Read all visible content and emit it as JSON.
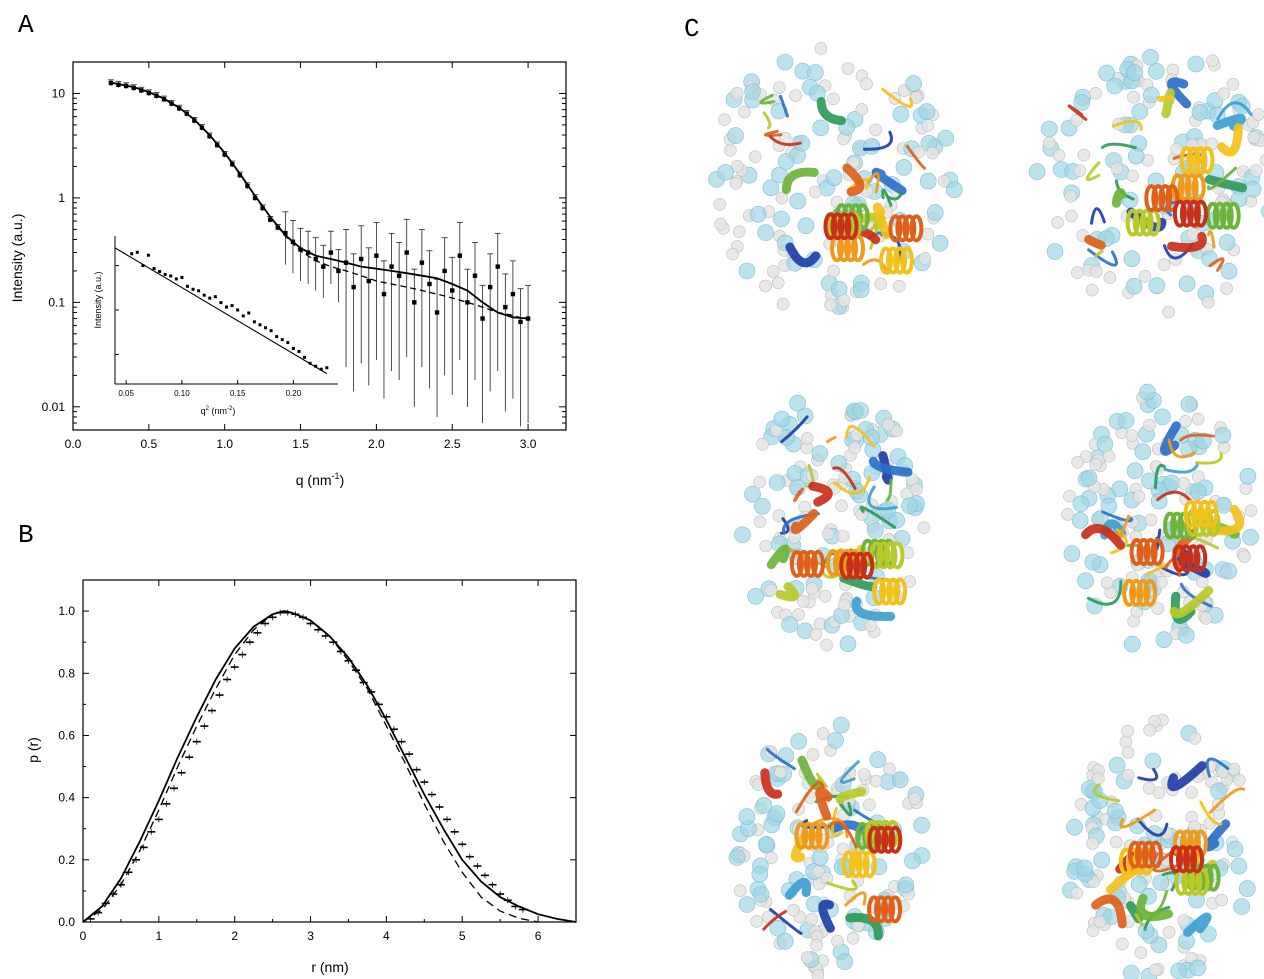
{
  "panel_labels": {
    "a": "A",
    "b": "B",
    "c": "C"
  },
  "chart_data": [
    {
      "panel": "A",
      "type": "scatter",
      "xlabel_prefix": "q (nm",
      "xlabel_exp": "-1",
      "xlabel_suffix": ")",
      "ylabel": "Intensity (a.u.)",
      "xlim": [
        0.0,
        3.25
      ],
      "ylim": [
        0.006,
        20
      ],
      "yscale": "log",
      "x_ticks": [
        "0.0",
        "0.5",
        "1.0",
        "1.5",
        "2.0",
        "2.5",
        "3.0"
      ],
      "x_tick_values": [
        0.0,
        0.5,
        1.0,
        1.5,
        2.0,
        2.5,
        3.0
      ],
      "y_ticks": [
        "10",
        "1",
        "0.1",
        "0.01"
      ],
      "y_tick_values": [
        10,
        1,
        0.1,
        0.01
      ],
      "fit_solid": [
        [
          0.24,
          12.8
        ],
        [
          0.3,
          12.3
        ],
        [
          0.4,
          11.5
        ],
        [
          0.5,
          10.3
        ],
        [
          0.6,
          8.9
        ],
        [
          0.7,
          7.3
        ],
        [
          0.8,
          5.6
        ],
        [
          0.9,
          4.0
        ],
        [
          1.0,
          2.7
        ],
        [
          1.1,
          1.7
        ],
        [
          1.2,
          1.05
        ],
        [
          1.3,
          0.66
        ],
        [
          1.4,
          0.44
        ],
        [
          1.5,
          0.33
        ],
        [
          1.6,
          0.28
        ],
        [
          1.7,
          0.26
        ],
        [
          1.8,
          0.24
        ],
        [
          1.9,
          0.22
        ],
        [
          2.0,
          0.21
        ],
        [
          2.1,
          0.2
        ],
        [
          2.2,
          0.19
        ],
        [
          2.3,
          0.18
        ],
        [
          2.4,
          0.17
        ],
        [
          2.5,
          0.15
        ],
        [
          2.6,
          0.13
        ],
        [
          2.7,
          0.1
        ],
        [
          2.8,
          0.08
        ],
        [
          2.9,
          0.072
        ],
        [
          3.0,
          0.07
        ]
      ],
      "fit_dashed": [
        [
          0.24,
          12.8
        ],
        [
          0.3,
          12.3
        ],
        [
          0.4,
          11.5
        ],
        [
          0.5,
          10.3
        ],
        [
          0.6,
          8.9
        ],
        [
          0.7,
          7.3
        ],
        [
          0.8,
          5.6
        ],
        [
          0.9,
          4.0
        ],
        [
          1.0,
          2.7
        ],
        [
          1.1,
          1.7
        ],
        [
          1.2,
          1.05
        ],
        [
          1.3,
          0.66
        ],
        [
          1.4,
          0.43
        ],
        [
          1.5,
          0.31
        ],
        [
          1.6,
          0.25
        ],
        [
          1.7,
          0.22
        ],
        [
          1.8,
          0.2
        ],
        [
          1.9,
          0.18
        ],
        [
          2.0,
          0.16
        ],
        [
          2.1,
          0.15
        ],
        [
          2.2,
          0.14
        ],
        [
          2.3,
          0.13
        ],
        [
          2.4,
          0.12
        ],
        [
          2.5,
          0.11
        ],
        [
          2.6,
          0.1
        ],
        [
          2.7,
          0.09
        ],
        [
          2.8,
          0.08
        ],
        [
          2.9,
          0.075
        ],
        [
          3.0,
          0.068
        ]
      ],
      "data_points": [
        [
          0.25,
          12.6
        ],
        [
          0.3,
          12.1
        ],
        [
          0.35,
          11.8
        ],
        [
          0.4,
          11.3
        ],
        [
          0.45,
          10.7
        ],
        [
          0.5,
          10.1
        ],
        [
          0.55,
          9.5
        ],
        [
          0.6,
          8.8
        ],
        [
          0.65,
          8.0
        ],
        [
          0.7,
          7.2
        ],
        [
          0.75,
          6.4
        ],
        [
          0.8,
          5.5
        ],
        [
          0.85,
          4.7
        ],
        [
          0.9,
          3.9
        ],
        [
          0.95,
          3.2
        ],
        [
          1.0,
          2.6
        ],
        [
          1.05,
          2.1
        ],
        [
          1.1,
          1.65
        ],
        [
          1.15,
          1.3
        ],
        [
          1.2,
          1.0
        ],
        [
          1.25,
          0.8
        ],
        [
          1.3,
          0.62
        ],
        [
          1.35,
          0.52
        ],
        [
          1.4,
          0.46
        ],
        [
          1.45,
          0.38
        ],
        [
          1.5,
          0.32
        ],
        [
          1.55,
          0.3
        ],
        [
          1.6,
          0.26
        ],
        [
          1.65,
          0.22
        ],
        [
          1.7,
          0.3
        ],
        [
          1.75,
          0.2
        ],
        [
          1.8,
          0.24
        ],
        [
          1.85,
          0.14
        ],
        [
          1.9,
          0.26
        ],
        [
          1.95,
          0.16
        ],
        [
          2.0,
          0.28
        ],
        [
          2.05,
          0.12
        ],
        [
          2.1,
          0.22
        ],
        [
          2.15,
          0.18
        ],
        [
          2.2,
          0.3
        ],
        [
          2.25,
          0.1
        ],
        [
          2.3,
          0.24
        ],
        [
          2.35,
          0.15
        ],
        [
          2.4,
          0.08
        ],
        [
          2.45,
          0.2
        ],
        [
          2.5,
          0.13
        ],
        [
          2.55,
          0.28
        ],
        [
          2.6,
          0.1
        ],
        [
          2.65,
          0.18
        ],
        [
          2.7,
          0.07
        ],
        [
          2.75,
          0.14
        ],
        [
          2.8,
          0.22
        ],
        [
          2.85,
          0.09
        ],
        [
          2.9,
          0.12
        ],
        [
          2.95,
          0.065
        ],
        [
          3.0,
          0.07
        ]
      ],
      "inset": {
        "xlabel_prefix": "q",
        "xlabel_exp_sup": "2",
        "xlabel_middle": " (nm",
        "xlabel_exp": "-2",
        "xlabel_suffix": ")",
        "ylabel": "Intensity (a.u.)",
        "xlim": [
          0.04,
          0.24
        ],
        "x_ticks": [
          "0.05",
          "0.10",
          "0.15",
          "0.20"
        ],
        "x_tick_values": [
          0.05,
          0.1,
          0.15,
          0.2
        ],
        "fit": [
          [
            0.04,
            0.92
          ],
          [
            0.23,
            0.07
          ]
        ],
        "points": [
          [
            0.055,
            0.88
          ],
          [
            0.06,
            0.89
          ],
          [
            0.065,
            0.8
          ],
          [
            0.07,
            0.87
          ],
          [
            0.075,
            0.78
          ],
          [
            0.08,
            0.76
          ],
          [
            0.085,
            0.74
          ],
          [
            0.09,
            0.73
          ],
          [
            0.095,
            0.71
          ],
          [
            0.1,
            0.72
          ],
          [
            0.105,
            0.66
          ],
          [
            0.11,
            0.64
          ],
          [
            0.115,
            0.63
          ],
          [
            0.12,
            0.6
          ],
          [
            0.125,
            0.58
          ],
          [
            0.13,
            0.59
          ],
          [
            0.135,
            0.55
          ],
          [
            0.14,
            0.52
          ],
          [
            0.145,
            0.53
          ],
          [
            0.15,
            0.5
          ],
          [
            0.155,
            0.46
          ],
          [
            0.16,
            0.48
          ],
          [
            0.165,
            0.42
          ],
          [
            0.17,
            0.4
          ],
          [
            0.175,
            0.38
          ],
          [
            0.18,
            0.36
          ],
          [
            0.185,
            0.32
          ],
          [
            0.19,
            0.3
          ],
          [
            0.195,
            0.28
          ],
          [
            0.2,
            0.24
          ],
          [
            0.205,
            0.22
          ],
          [
            0.21,
            0.18
          ],
          [
            0.215,
            0.14
          ],
          [
            0.22,
            0.12
          ],
          [
            0.225,
            0.1
          ],
          [
            0.23,
            0.11
          ]
        ]
      }
    },
    {
      "panel": "B",
      "type": "line",
      "xlabel": "r (nm)",
      "ylabel": "p (r)",
      "xlim": [
        0,
        6.5
      ],
      "ylim": [
        0,
        1.1
      ],
      "x_ticks": [
        "0",
        "1",
        "2",
        "3",
        "4",
        "5",
        "6"
      ],
      "x_tick_values": [
        0,
        1,
        2,
        3,
        4,
        5,
        6
      ],
      "y_ticks": [
        "0.0",
        "0.2",
        "0.4",
        "0.6",
        "0.8",
        "1.0"
      ],
      "y_tick_values": [
        0.0,
        0.2,
        0.4,
        0.6,
        0.8,
        1.0
      ],
      "solid": [
        [
          0,
          0
        ],
        [
          0.25,
          0.05
        ],
        [
          0.5,
          0.14
        ],
        [
          0.75,
          0.26
        ],
        [
          1.0,
          0.39
        ],
        [
          1.25,
          0.53
        ],
        [
          1.5,
          0.66
        ],
        [
          1.75,
          0.78
        ],
        [
          2.0,
          0.88
        ],
        [
          2.25,
          0.95
        ],
        [
          2.5,
          0.99
        ],
        [
          2.65,
          1.0
        ],
        [
          2.75,
          0.995
        ],
        [
          3.0,
          0.97
        ],
        [
          3.25,
          0.92
        ],
        [
          3.5,
          0.85
        ],
        [
          3.75,
          0.76
        ],
        [
          4.0,
          0.65
        ],
        [
          4.25,
          0.53
        ],
        [
          4.5,
          0.41
        ],
        [
          4.75,
          0.3
        ],
        [
          5.0,
          0.2
        ],
        [
          5.25,
          0.13
        ],
        [
          5.5,
          0.08
        ],
        [
          5.75,
          0.05
        ],
        [
          6.0,
          0.025
        ],
        [
          6.25,
          0.01
        ],
        [
          6.5,
          0.0
        ]
      ],
      "dashed": [
        [
          0,
          0
        ],
        [
          0.25,
          0.04
        ],
        [
          0.5,
          0.12
        ],
        [
          0.75,
          0.23
        ],
        [
          1.0,
          0.36
        ],
        [
          1.25,
          0.5
        ],
        [
          1.5,
          0.63
        ],
        [
          1.75,
          0.75
        ],
        [
          2.0,
          0.86
        ],
        [
          2.25,
          0.94
        ],
        [
          2.5,
          0.99
        ],
        [
          2.65,
          1.0
        ],
        [
          2.75,
          0.995
        ],
        [
          3.0,
          0.97
        ],
        [
          3.25,
          0.92
        ],
        [
          3.5,
          0.84
        ],
        [
          3.75,
          0.75
        ],
        [
          4.0,
          0.63
        ],
        [
          4.25,
          0.51
        ],
        [
          4.5,
          0.38
        ],
        [
          4.75,
          0.26
        ],
        [
          5.0,
          0.16
        ],
        [
          5.25,
          0.08
        ],
        [
          5.5,
          0.035
        ],
        [
          5.75,
          0.012
        ],
        [
          6.0,
          0.0
        ]
      ],
      "points": [
        [
          0.1,
          0.01
        ],
        [
          0.2,
          0.03
        ],
        [
          0.3,
          0.06
        ],
        [
          0.4,
          0.09
        ],
        [
          0.5,
          0.12
        ],
        [
          0.6,
          0.16
        ],
        [
          0.7,
          0.2
        ],
        [
          0.8,
          0.24
        ],
        [
          0.9,
          0.29
        ],
        [
          1.0,
          0.33
        ],
        [
          1.1,
          0.38
        ],
        [
          1.2,
          0.43
        ],
        [
          1.3,
          0.48
        ],
        [
          1.4,
          0.53
        ],
        [
          1.5,
          0.58
        ],
        [
          1.6,
          0.63
        ],
        [
          1.7,
          0.68
        ],
        [
          1.8,
          0.73
        ],
        [
          1.9,
          0.78
        ],
        [
          2.0,
          0.82
        ],
        [
          2.1,
          0.86
        ],
        [
          2.2,
          0.9
        ],
        [
          2.3,
          0.93
        ],
        [
          2.4,
          0.96
        ],
        [
          2.5,
          0.98
        ],
        [
          2.6,
          0.995
        ],
        [
          2.7,
          0.995
        ],
        [
          2.8,
          0.99
        ],
        [
          2.9,
          0.98
        ],
        [
          3.0,
          0.96
        ],
        [
          3.1,
          0.94
        ],
        [
          3.2,
          0.92
        ],
        [
          3.3,
          0.9
        ],
        [
          3.4,
          0.87
        ],
        [
          3.5,
          0.84
        ],
        [
          3.6,
          0.81
        ],
        [
          3.7,
          0.77
        ],
        [
          3.8,
          0.74
        ],
        [
          3.9,
          0.7
        ],
        [
          4.0,
          0.66
        ],
        [
          4.1,
          0.62
        ],
        [
          4.2,
          0.58
        ],
        [
          4.3,
          0.54
        ],
        [
          4.4,
          0.49
        ],
        [
          4.5,
          0.45
        ],
        [
          4.6,
          0.41
        ],
        [
          4.7,
          0.37
        ],
        [
          4.8,
          0.33
        ],
        [
          4.9,
          0.29
        ],
        [
          5.0,
          0.25
        ],
        [
          5.1,
          0.21
        ],
        [
          5.2,
          0.18
        ],
        [
          5.3,
          0.15
        ],
        [
          5.4,
          0.12
        ],
        [
          5.5,
          0.09
        ],
        [
          5.6,
          0.07
        ],
        [
          5.7,
          0.05
        ],
        [
          5.8,
          0.04
        ]
      ]
    }
  ]
}
